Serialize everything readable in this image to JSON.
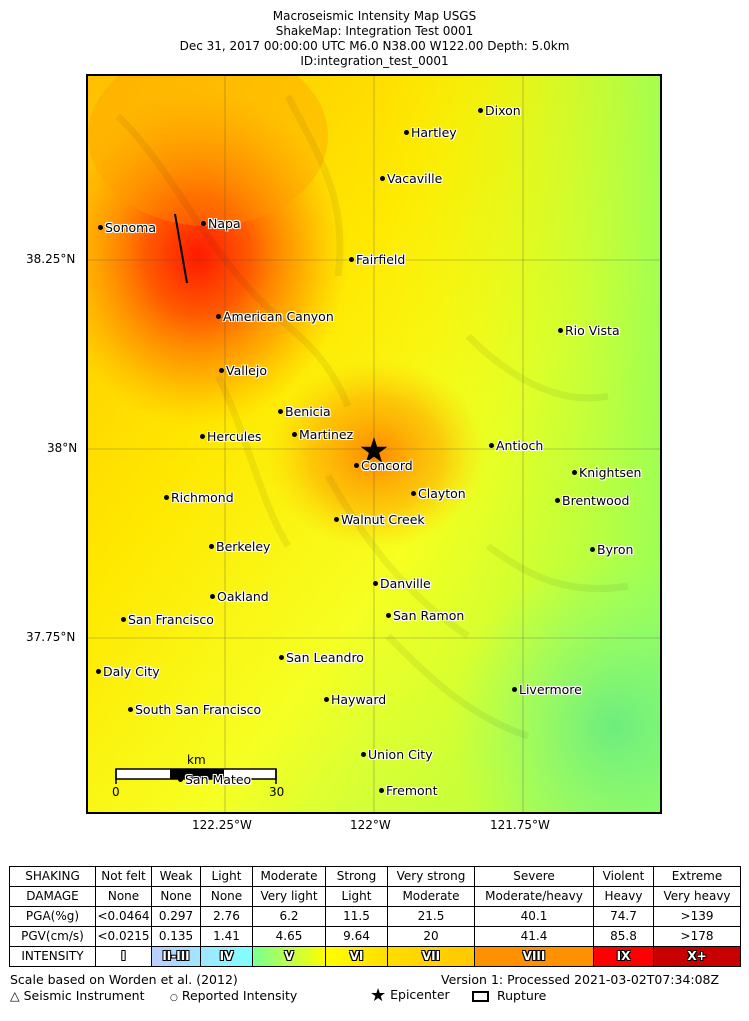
{
  "title_lines": [
    "Macroseismic Intensity Map USGS",
    "ShakeMap: Integration Test 0001",
    "Dec 31, 2017 00:00:00 UTC M6.0 N38.00 W122.00 Depth: 5.0km",
    "ID:integration_test_0001"
  ],
  "axes": {
    "lat_labels": [
      "38.25°N",
      "38°N",
      "37.75°N"
    ],
    "lon_labels": [
      "122.25°W",
      "122°W",
      "121.75°W"
    ]
  },
  "cities": [
    {
      "name": "Dixon"
    },
    {
      "name": "Hartley"
    },
    {
      "name": "Vacaville"
    },
    {
      "name": "Sonoma"
    },
    {
      "name": "Napa"
    },
    {
      "name": "Fairfield"
    },
    {
      "name": "American Canyon"
    },
    {
      "name": "Rio Vista"
    },
    {
      "name": "Vallejo"
    },
    {
      "name": "Benicia"
    },
    {
      "name": "Hercules"
    },
    {
      "name": "Martinez"
    },
    {
      "name": "Antioch"
    },
    {
      "name": "Concord"
    },
    {
      "name": "Knightsen"
    },
    {
      "name": "Richmond"
    },
    {
      "name": "Clayton"
    },
    {
      "name": "Brentwood"
    },
    {
      "name": "Walnut Creek"
    },
    {
      "name": "Berkeley"
    },
    {
      "name": "Byron"
    },
    {
      "name": "Danville"
    },
    {
      "name": "Oakland"
    },
    {
      "name": "San Francisco"
    },
    {
      "name": "San Ramon"
    },
    {
      "name": "San Leandro"
    },
    {
      "name": "Daly City"
    },
    {
      "name": "Livermore"
    },
    {
      "name": "Hayward"
    },
    {
      "name": "South San Francisco"
    },
    {
      "name": "Union City"
    },
    {
      "name": "San Mateo"
    },
    {
      "name": "Fremont"
    }
  ],
  "scale_bar": {
    "unit": "km",
    "start": "0",
    "end": "30"
  },
  "legend": {
    "rows": [
      {
        "label": "SHAKING",
        "cells": [
          "Not felt",
          "Weak",
          "Light",
          "Moderate",
          "Strong",
          "Very strong",
          "Severe",
          "Violent",
          "Extreme"
        ]
      },
      {
        "label": "DAMAGE",
        "cells": [
          "None",
          "None",
          "None",
          "Very light",
          "Light",
          "Moderate",
          "Moderate/heavy",
          "Heavy",
          "Very heavy"
        ]
      },
      {
        "label": "PGA(%g)",
        "cells": [
          "<0.0464",
          "0.297",
          "2.76",
          "6.2",
          "11.5",
          "21.5",
          "40.1",
          "74.7",
          ">139"
        ]
      },
      {
        "label": "PGV(cm/s)",
        "cells": [
          "<0.0215",
          "0.135",
          "1.41",
          "4.65",
          "9.64",
          "20",
          "41.4",
          "85.8",
          ">178"
        ]
      }
    ],
    "intensity": {
      "label": "INTENSITY",
      "cells": [
        "I",
        "II-III",
        "IV",
        "V",
        "VI",
        "VII",
        "VIII",
        "IX",
        "X+"
      ],
      "gradients": [
        [
          "#ffffff",
          "#ffffff"
        ],
        [
          "#bfccff",
          "#a0e6ff"
        ],
        [
          "#a0e6ff",
          "#80ffff"
        ],
        [
          "#7aff93",
          "#ffff00"
        ],
        [
          "#ffff00",
          "#ffdd00"
        ],
        [
          "#ffdd00",
          "#ffc800"
        ],
        [
          "#ff9100",
          "#ff9100"
        ],
        [
          "#ff0000",
          "#ff0000"
        ],
        [
          "#c80000",
          "#c80000"
        ]
      ]
    }
  },
  "footer": {
    "scale_note": "Scale based on Worden et al. (2012)",
    "version": "Version 1: Processed 2021-03-02T07:34:08Z",
    "seismic_instrument": "Seismic Instrument",
    "reported_intensity": "Reported Intensity",
    "epicenter": "Epicenter",
    "rupture": "Rupture"
  }
}
